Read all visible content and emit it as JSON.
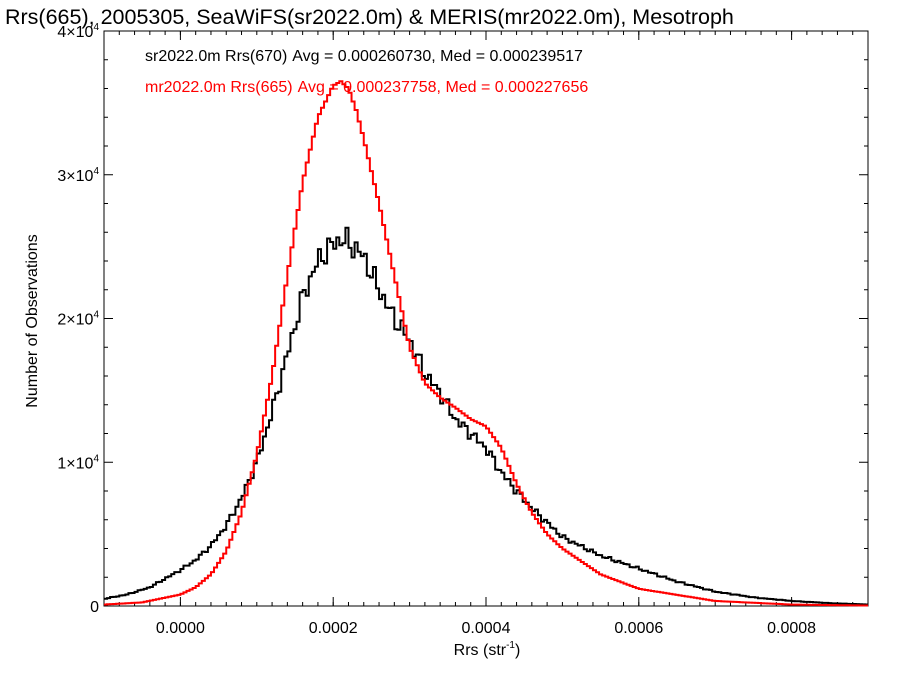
{
  "chart_data": {
    "type": "line",
    "title": "Rrs(665), 2005305, SeaWiFS(sr2022.0m) & MERIS(mr2022.0m), Mesotroph",
    "xlabel_main": "Rrs (str",
    "xlabel_sup": "-1",
    "xlabel_end": ")",
    "ylabel": "Number of Observations",
    "xlim": [
      -0.0001,
      0.0009
    ],
    "ylim": [
      0,
      40000
    ],
    "x_ticks": [
      {
        "value": 0.0,
        "label": "0.0000"
      },
      {
        "value": 0.0002,
        "label": "0.0002"
      },
      {
        "value": 0.0004,
        "label": "0.0004"
      },
      {
        "value": 0.0006,
        "label": "0.0006"
      },
      {
        "value": 0.0008,
        "label": "0.0008"
      }
    ],
    "y_ticks": [
      {
        "value": 0,
        "base": "0",
        "sup": ""
      },
      {
        "value": 10000,
        "base": "1×10",
        "sup": "4"
      },
      {
        "value": 20000,
        "base": "2×10",
        "sup": "4"
      },
      {
        "value": 30000,
        "base": "3×10",
        "sup": "4"
      },
      {
        "value": 40000,
        "base": "4×10",
        "sup": "4"
      }
    ],
    "series": [
      {
        "name": "sr2022.0m Rrs(670)",
        "color": "#000000",
        "stats": "Avg = 0.000260730, Med = 0.000239517",
        "x": [
          -0.0001,
          -7e-05,
          -4e-05,
          -2e-05,
          0.0,
          2e-05,
          4e-05,
          6e-05,
          8e-05,
          0.0001,
          0.00012,
          0.00014,
          0.00016,
          0.00018,
          0.0002,
          0.00021,
          0.00022,
          0.00024,
          0.00026,
          0.00028,
          0.0003,
          0.00032,
          0.00034,
          0.00036,
          0.00038,
          0.0004,
          0.00042,
          0.00044,
          0.00046,
          0.0005,
          0.00055,
          0.0006,
          0.00065,
          0.0007,
          0.00075,
          0.0008,
          0.00085,
          0.0009
        ],
        "y": [
          500,
          800,
          1300,
          1900,
          2500,
          3200,
          4200,
          5600,
          7500,
          10000,
          13500,
          17500,
          21500,
          24000,
          25200,
          25500,
          25300,
          24300,
          22000,
          20000,
          18500,
          16200,
          14800,
          13000,
          12000,
          11000,
          9300,
          8000,
          6800,
          4800,
          3500,
          2600,
          1700,
          1000,
          600,
          350,
          200,
          100
        ]
      },
      {
        "name": "mr2022.0m Rrs(665)",
        "color": "#ff0000",
        "stats": "Avg = 0.000237758, Med = 0.000227656",
        "x": [
          -0.0001,
          -5e-05,
          0.0,
          2e-05,
          4e-05,
          6e-05,
          8e-05,
          0.0001,
          0.00012,
          0.00014,
          0.00016,
          0.00018,
          0.0002,
          0.00021,
          0.00022,
          0.00023,
          0.00024,
          0.00026,
          0.00028,
          0.0003,
          0.00032,
          0.00034,
          0.00036,
          0.00038,
          0.0004,
          0.00042,
          0.00044,
          0.00046,
          0.00048,
          0.0005,
          0.00055,
          0.0006,
          0.0007,
          0.0008,
          0.0009
        ],
        "y": [
          100,
          250,
          800,
          1300,
          2200,
          3800,
          6500,
          10500,
          16000,
          23000,
          29500,
          34000,
          36200,
          36500,
          36000,
          34500,
          32500,
          28000,
          23000,
          18000,
          15500,
          14500,
          13800,
          13000,
          12500,
          11000,
          8500,
          6500,
          5000,
          4000,
          2200,
          1200,
          350,
          100,
          30
        ]
      }
    ],
    "grid": false,
    "legend_placement": "top-left"
  }
}
